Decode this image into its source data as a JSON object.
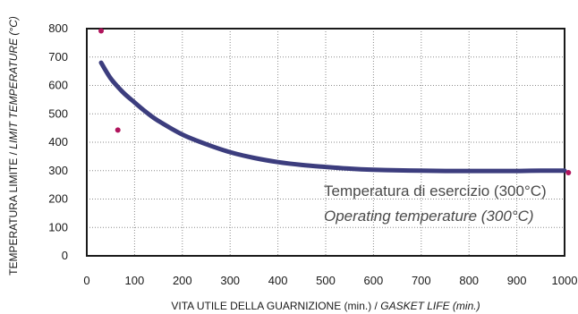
{
  "chart_data": {
    "type": "line",
    "xlabel": "VITA UTILE DELLA GUARNIZIONE (min.)",
    "xlabel_en": "GASKET LIFE (min.)",
    "xlabel_sep": " / ",
    "ylabel": "TEMPERATURA LIMITE",
    "ylabel_en": "LIMIT TEMPERATURE (°C)",
    "ylabel_sep": " / ",
    "xlim": [
      0,
      1000
    ],
    "ylim": [
      0,
      800
    ],
    "xticks": [
      "0",
      "100",
      "200",
      "300",
      "400",
      "500",
      "600",
      "700",
      "800",
      "900",
      "1000"
    ],
    "xtick_values": [
      0,
      100,
      200,
      300,
      400,
      500,
      600,
      700,
      800,
      900,
      1000
    ],
    "yticks": [
      "0",
      "100",
      "200",
      "300",
      "400",
      "500",
      "600",
      "700",
      "800"
    ],
    "ytick_values": [
      0,
      100,
      200,
      300,
      400,
      500,
      600,
      700,
      800
    ],
    "grid": "dotted",
    "series": [
      {
        "color": "#3c3d7e",
        "x": [
          30,
          50,
          75,
          100,
          125,
          150,
          200,
          250,
          300,
          350,
          400,
          450,
          500,
          550,
          600,
          650,
          700,
          750,
          800,
          850,
          900,
          950,
          1000
        ],
        "y": [
          680,
          625,
          577,
          540,
          505,
          475,
          427,
          393,
          365,
          345,
          330,
          320,
          313,
          307,
          303,
          301,
          300,
          299,
          299,
          299,
          299,
          300,
          300
        ]
      }
    ],
    "points": [
      {
        "x": 30,
        "y": 792,
        "color": "#b0145c"
      },
      {
        "x": 65,
        "y": 443,
        "color": "#b0145c"
      },
      {
        "x": 1008,
        "y": 293,
        "color": "#b0145c"
      }
    ],
    "annotation": {
      "line1": "Temperatura di esercizio (300°C)",
      "line2": "Operating temperature (300°C)"
    }
  }
}
